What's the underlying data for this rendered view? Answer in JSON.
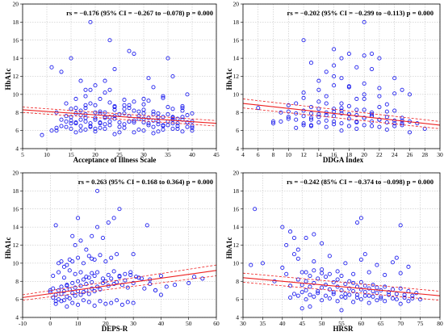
{
  "colors": {
    "points": "#2020ee",
    "fit": "#ee2020",
    "grid": "#b8b8b8"
  },
  "chart_data": [
    {
      "type": "scatter",
      "xlabel": "Acceptance of Illness Scale",
      "ylabel": "HbA1c",
      "annotation": "rs = −0.176 (95% CI = −0.267 to −0.078) p = 0.000",
      "xlim": [
        5,
        45
      ],
      "ylim": [
        4,
        20
      ],
      "xticks": [
        5,
        10,
        15,
        20,
        25,
        30,
        35,
        40,
        45
      ],
      "yticks": [
        4,
        6,
        8,
        10,
        12,
        14,
        16,
        18,
        20
      ],
      "grid": true,
      "fit": {
        "x0": 5,
        "y0": 8.3,
        "x1": 45,
        "y1": 6.8,
        "ci_low": [
          8.0,
          6.5
        ],
        "ci_high": [
          8.6,
          7.1
        ]
      },
      "x": [
        9,
        11,
        12,
        13,
        14,
        15,
        15,
        16,
        16,
        17,
        17,
        18,
        18,
        19,
        19,
        20,
        20,
        21,
        21,
        22,
        22,
        23,
        23,
        24,
        25,
        26,
        27,
        28,
        29,
        30,
        31,
        32,
        33,
        34,
        35,
        36,
        37,
        38,
        39,
        40,
        12,
        14,
        16,
        18,
        20,
        22,
        24,
        26,
        28,
        30,
        32,
        34,
        36,
        38,
        40,
        13,
        15,
        17,
        19,
        21,
        23,
        25,
        27,
        29,
        31,
        33,
        35,
        37,
        39,
        15,
        17,
        19,
        21,
        23,
        25,
        27,
        29,
        31,
        33,
        35,
        37,
        39,
        16,
        18,
        20,
        22,
        24,
        26,
        28,
        30,
        32,
        34,
        36,
        38,
        40,
        18,
        22,
        26,
        30,
        34,
        38,
        19,
        23,
        27,
        31,
        35,
        39,
        17,
        21,
        25,
        29,
        33,
        37,
        16,
        20,
        24,
        28,
        32,
        36,
        40,
        15,
        18,
        21,
        24,
        27,
        30,
        33,
        36,
        39,
        11,
        13,
        15,
        17,
        19,
        23,
        27,
        31,
        35,
        20,
        24,
        28,
        32,
        36,
        14,
        18,
        22,
        26,
        30,
        34,
        38,
        40,
        38,
        36,
        34,
        32,
        30,
        28,
        26,
        24,
        22,
        20,
        18,
        16,
        14,
        12
      ],
      "y": [
        5.5,
        6.0,
        6.3,
        6.5,
        7.0,
        6.2,
        7.5,
        6.8,
        7.9,
        6.5,
        8.2,
        7.0,
        8.5,
        6.8,
        9.0,
        7.2,
        8.8,
        6.9,
        9.5,
        7.5,
        8.0,
        6.6,
        10.5,
        7.3,
        7.8,
        8.4,
        7.0,
        9.2,
        7.6,
        6.9,
        7.4,
        8.1,
        7.0,
        6.5,
        7.8,
        7.2,
        6.8,
        7.5,
        6.4,
        7.0,
        8.0,
        7.6,
        9.5,
        8.8,
        7.4,
        6.7,
        8.6,
        7.9,
        6.9,
        8.3,
        7.1,
        6.6,
        7.4,
        8.2,
        6.3,
        7.2,
        6.8,
        7.7,
        6.4,
        8.1,
        7.5,
        6.9,
        8.8,
        7.3,
        6.6,
        7.9,
        7.0,
        6.5,
        7.7,
        8.4,
        7.2,
        6.5,
        7.9,
        7.0,
        6.4,
        7.6,
        8.1,
        6.8,
        7.5,
        6.6,
        7.3,
        6.9,
        6.9,
        7.8,
        6.2,
        7.4,
        8.3,
        6.7,
        7.1,
        7.9,
        6.4,
        7.5,
        6.8,
        7.2,
        6.5,
        9.8,
        10.2,
        9.4,
        8.9,
        9.6,
        8.7,
        10.5,
        9.1,
        8.5,
        9.3,
        8.6,
        10.0,
        6.0,
        6.3,
        5.8,
        6.1,
        5.9,
        6.2,
        8.5,
        8.0,
        8.7,
        8.2,
        7.8,
        8.4,
        7.9,
        7.1,
        7.4,
        6.8,
        7.6,
        7.0,
        7.3,
        6.7,
        7.5,
        6.9,
        13.0,
        12.5,
        14.0,
        11.5,
        18.0,
        16.0,
        14.8,
        11.8,
        14.0,
        11.0,
        12.8,
        14.5,
        10.8,
        12.0,
        9.0,
        10.5,
        11.5,
        8.8,
        9.5,
        9.8,
        8.5,
        6.0,
        5.9,
        6.2,
        6.1,
        5.7,
        6.0,
        5.8,
        6.3,
        5.6,
        6.2,
        5.9,
        6.1,
        5.8,
        6.4,
        6.0
      ]
    },
    {
      "type": "scatter",
      "xlabel": "DDGA Index",
      "ylabel": "HbA1c",
      "annotation": "rs = −0.202 (95% CI = −0.299 to −0.113) p = 0.000",
      "xlim": [
        4,
        30
      ],
      "ylim": [
        4,
        20
      ],
      "xticks": [
        4,
        6,
        8,
        10,
        12,
        14,
        16,
        18,
        20,
        22,
        24,
        26,
        28,
        30
      ],
      "yticks": [
        4,
        6,
        8,
        10,
        12,
        14,
        16,
        18,
        20
      ],
      "grid": true,
      "fit": {
        "x0": 4,
        "y0": 9.0,
        "x1": 30,
        "y1": 6.6,
        "ci_low": [
          8.5,
          6.2
        ],
        "ci_high": [
          9.5,
          7.0
        ]
      },
      "x": [
        6,
        8,
        9,
        10,
        10,
        11,
        11,
        12,
        12,
        12,
        13,
        13,
        13,
        14,
        14,
        14,
        15,
        15,
        15,
        16,
        16,
        16,
        17,
        17,
        17,
        18,
        18,
        18,
        19,
        19,
        19,
        20,
        20,
        20,
        21,
        21,
        21,
        22,
        22,
        22,
        23,
        23,
        24,
        24,
        25,
        25,
        26,
        27,
        28,
        12,
        14,
        16,
        18,
        20,
        22,
        24,
        11,
        13,
        15,
        17,
        19,
        21,
        23,
        25,
        10,
        12,
        14,
        16,
        18,
        20,
        22,
        24,
        26,
        9,
        11,
        13,
        15,
        17,
        19,
        21,
        23,
        14,
        16,
        18,
        20,
        22,
        15,
        17,
        19,
        21,
        12,
        16,
        20,
        24,
        13,
        17,
        21,
        25,
        18,
        20,
        22,
        16,
        26,
        15,
        19,
        23,
        14,
        18,
        22,
        12,
        16,
        20,
        24,
        13,
        17,
        21,
        25,
        8,
        10
      ],
      "y": [
        8.5,
        7.0,
        8.0,
        7.5,
        8.8,
        7.2,
        9.0,
        6.8,
        8.2,
        9.6,
        7.4,
        8.6,
        6.6,
        7.8,
        9.2,
        6.9,
        8.0,
        7.1,
        9.8,
        7.6,
        8.4,
        6.7,
        7.9,
        9.0,
        6.8,
        7.3,
        8.7,
        6.5,
        7.7,
        8.3,
        6.9,
        7.4,
        9.5,
        6.6,
        7.8,
        8.0,
        7.0,
        7.2,
        8.6,
        6.4,
        7.5,
        6.9,
        7.1,
        8.2,
        6.6,
        7.4,
        7.0,
        6.8,
        6.2,
        10.2,
        10.5,
        11.0,
        10.8,
        10.0,
        9.8,
        10.1,
        7.9,
        7.2,
        7.7,
        8.5,
        7.0,
        7.6,
        8.1,
        6.8,
        8.1,
        7.6,
        8.4,
        8.1,
        7.8,
        8.3,
        7.2,
        6.5,
        5.8,
        7.0,
        6.3,
        6.5,
        6.4,
        6.0,
        6.2,
        6.5,
        6.1,
        11.5,
        12.0,
        10.9,
        11.2,
        10.7,
        12.5,
        11.8,
        13.0,
        14.5,
        16.0,
        15.0,
        14.3,
        11.8,
        13.5,
        14.0,
        12.8,
        10.5,
        14.5,
        18.0,
        14.0,
        13.2,
        10.0,
        9.0,
        9.5,
        8.9,
        7.5,
        7.8,
        7.2,
        6.6,
        7.0,
        7.4,
        6.8,
        7.9,
        8.2,
        7.6,
        7.1,
        6.8,
        7.3
      ]
    },
    {
      "type": "scatter",
      "xlabel": "DEPS-R",
      "ylabel": "HbA1c",
      "annotation": "rs = 0.263 (95% CI = 0.168 to 0.364) p = 0.000",
      "xlim": [
        -10,
        60
      ],
      "ylim": [
        4,
        20
      ],
      "xticks": [
        -10,
        0,
        10,
        20,
        30,
        40,
        50,
        60
      ],
      "yticks": [
        4,
        6,
        8,
        10,
        12,
        14,
        16,
        18,
        20
      ],
      "grid": true,
      "fit": {
        "x0": -10,
        "y0": 6.2,
        "x1": 60,
        "y1": 9.2,
        "ci_low": [
          5.9,
          8.6
        ],
        "ci_high": [
          6.5,
          9.8
        ]
      },
      "x": [
        0,
        1,
        1,
        2,
        2,
        3,
        3,
        4,
        4,
        5,
        5,
        6,
        6,
        7,
        7,
        8,
        8,
        9,
        9,
        10,
        10,
        11,
        11,
        12,
        12,
        13,
        13,
        14,
        14,
        15,
        15,
        16,
        16,
        17,
        18,
        19,
        20,
        21,
        22,
        23,
        24,
        25,
        26,
        27,
        28,
        29,
        30,
        32,
        34,
        36,
        38,
        40,
        42,
        45,
        50,
        1,
        3,
        5,
        7,
        9,
        11,
        13,
        15,
        17,
        19,
        21,
        23,
        25,
        27,
        29,
        31,
        33,
        2,
        4,
        6,
        8,
        10,
        12,
        14,
        16,
        18,
        20,
        22,
        24,
        26,
        28,
        30,
        6,
        8,
        10,
        12,
        14,
        16,
        18,
        20,
        22,
        24,
        9,
        11,
        13,
        15,
        17,
        19,
        21,
        23,
        25,
        35,
        36,
        38,
        40,
        3,
        5,
        7,
        2,
        4,
        0,
        52,
        55,
        30,
        15,
        17,
        10,
        8,
        6
      ],
      "y": [
        6.8,
        6.2,
        7.2,
        5.8,
        6.5,
        7.0,
        6.0,
        6.6,
        7.4,
        5.9,
        6.9,
        6.3,
        7.6,
        6.1,
        7.1,
        6.7,
        7.8,
        6.4,
        7.3,
        6.9,
        8.0,
        6.5,
        7.5,
        6.8,
        8.2,
        7.0,
        7.7,
        6.6,
        8.4,
        7.2,
        7.9,
        6.9,
        8.6,
        7.4,
        7.1,
        7.8,
        8.0,
        7.5,
        8.3,
        7.7,
        7.9,
        8.5,
        7.6,
        8.1,
        7.3,
        8.7,
        7.8,
        8.4,
        7.2,
        7.7,
        7.0,
        8.6,
        7.4,
        7.6,
        7.8,
        8.6,
        9.0,
        8.4,
        9.2,
        8.8,
        9.0,
        8.5,
        8.9,
        9.0,
        8.3,
        8.7,
        9.1,
        8.6,
        8.8,
        9.0,
        8.5,
        8.3,
        5.5,
        5.8,
        5.2,
        5.6,
        5.4,
        5.9,
        5.7,
        5.3,
        5.8,
        5.5,
        5.6,
        5.9,
        5.4,
        5.7,
        5.6,
        9.8,
        10.2,
        10.6,
        10.0,
        10.8,
        10.4,
        10.9,
        10.2,
        10.6,
        11.0,
        12.0,
        12.5,
        11.5,
        13.0,
        14.0,
        12.8,
        14.5,
        15.0,
        16.0,
        14.2,
        8.2,
        7.0,
        6.5,
        10.0,
        9.6,
        10.4,
        14.2,
        10.2,
        7.0,
        8.5,
        8.3,
        11.0,
        10.5,
        18.0,
        15.0,
        13.0,
        7.5
      ]
    },
    {
      "type": "scatter",
      "xlabel": "HRSR",
      "ylabel": "HbA1c",
      "annotation": "rs = −0.242 (85% CI = −0.374 to −0.098) p = 0.000",
      "xlim": [
        30,
        80
      ],
      "ylim": [
        4,
        20
      ],
      "xticks": [
        30,
        35,
        40,
        45,
        50,
        55,
        60,
        65,
        70,
        75,
        80
      ],
      "yticks": [
        4,
        6,
        8,
        10,
        12,
        14,
        16,
        18,
        20
      ],
      "grid": true,
      "fit": {
        "x0": 30,
        "y0": 8.4,
        "x1": 80,
        "y1": 6.4,
        "ci_low": [
          7.9,
          5.9
        ],
        "ci_high": [
          8.9,
          6.9
        ]
      },
      "x": [
        32,
        35,
        38,
        40,
        41,
        42,
        43,
        44,
        45,
        45,
        46,
        46,
        47,
        47,
        48,
        48,
        49,
        49,
        50,
        50,
        51,
        51,
        52,
        52,
        53,
        53,
        54,
        54,
        55,
        55,
        56,
        56,
        57,
        57,
        58,
        58,
        59,
        59,
        60,
        60,
        61,
        61,
        62,
        62,
        63,
        63,
        64,
        64,
        65,
        65,
        66,
        67,
        68,
        69,
        70,
        71,
        72,
        73,
        74,
        42,
        44,
        46,
        48,
        50,
        52,
        54,
        56,
        58,
        60,
        62,
        64,
        66,
        68,
        70,
        72,
        43,
        45,
        47,
        49,
        51,
        53,
        55,
        57,
        59,
        61,
        63,
        65,
        67,
        69,
        71,
        73,
        44,
        48,
        52,
        56,
        60,
        64,
        68,
        72,
        46,
        50,
        54,
        58,
        62,
        66,
        70,
        40,
        42,
        44,
        46,
        48,
        33,
        41,
        43,
        59,
        60,
        61,
        69,
        70,
        50,
        45,
        47,
        55,
        75
      ],
      "y": [
        9.8,
        10.0,
        8.0,
        9.5,
        8.8,
        7.5,
        12.8,
        8.2,
        7.6,
        9.0,
        8.0,
        7.0,
        8.6,
        7.4,
        7.8,
        9.2,
        8.3,
        6.9,
        8.9,
        7.3,
        7.6,
        8.5,
        7.1,
        8.8,
        7.9,
        6.8,
        8.2,
        7.4,
        7.0,
        8.6,
        7.7,
        6.6,
        8.0,
        7.2,
        6.9,
        7.8,
        7.4,
        6.5,
        7.9,
        7.1,
        6.8,
        7.5,
        7.2,
        6.4,
        7.6,
        6.9,
        6.7,
        7.3,
        7.0,
        6.3,
        7.4,
        6.8,
        7.1,
        6.6,
        7.2,
        6.5,
        6.9,
        6.4,
        6.7,
        6.2,
        6.4,
        6.0,
        6.3,
        5.9,
        6.1,
        5.8,
        6.2,
        5.7,
        6.0,
        5.6,
        5.9,
        5.8,
        6.1,
        5.5,
        5.8,
        6.6,
        6.8,
        6.5,
        6.7,
        6.4,
        6.6,
        6.3,
        6.5,
        6.2,
        6.4,
        6.3,
        6.1,
        6.5,
        6.0,
        6.2,
        6.1,
        10.5,
        10.2,
        10.8,
        10.0,
        10.4,
        9.8,
        10.1,
        9.6,
        9.0,
        9.3,
        9.1,
        8.8,
        9.0,
        8.7,
        8.9,
        14.0,
        13.5,
        11.5,
        12.8,
        13.2,
        16.0,
        12.0,
        11.0,
        14.5,
        15.0,
        11.0,
        10.6,
        14.2,
        12.2,
        5.0,
        5.2,
        4.8,
        6.0
      ]
    }
  ]
}
